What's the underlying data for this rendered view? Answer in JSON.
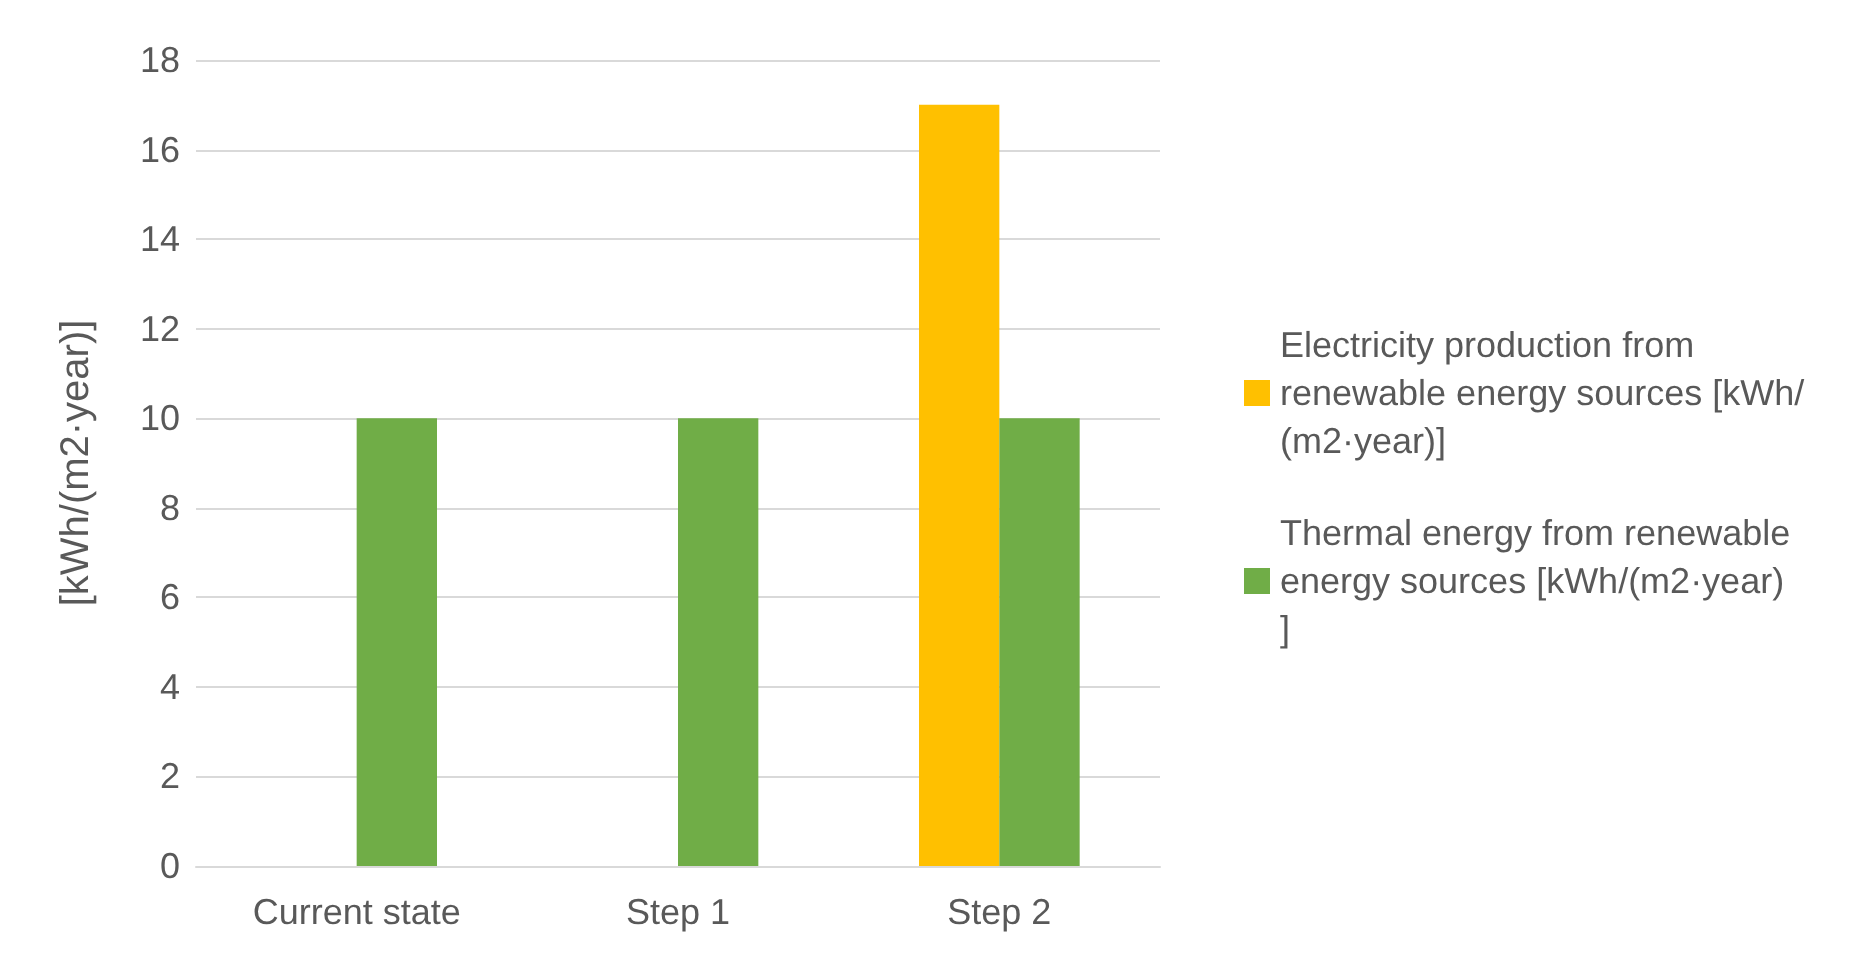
{
  "chart_data": {
    "type": "bar",
    "ylabel": "[kWh/(m2·year)]",
    "categories": [
      "Current state",
      "Step 1",
      "Step 2"
    ],
    "series": [
      {
        "name": "Electricity production from renewable energy sources [kWh/(m2·year)]",
        "color": "#ffc000",
        "values": [
          0,
          0,
          17
        ]
      },
      {
        "name": "Thermal energy from renewable energy sources [kWh/(m2·year)]",
        "color": "#70ad47",
        "values": [
          10,
          10,
          10
        ]
      }
    ],
    "ylim": [
      0,
      18
    ],
    "yticks": [
      0,
      2,
      4,
      6,
      8,
      10,
      12,
      14,
      16,
      18
    ],
    "grid": "y",
    "legend": "right"
  }
}
